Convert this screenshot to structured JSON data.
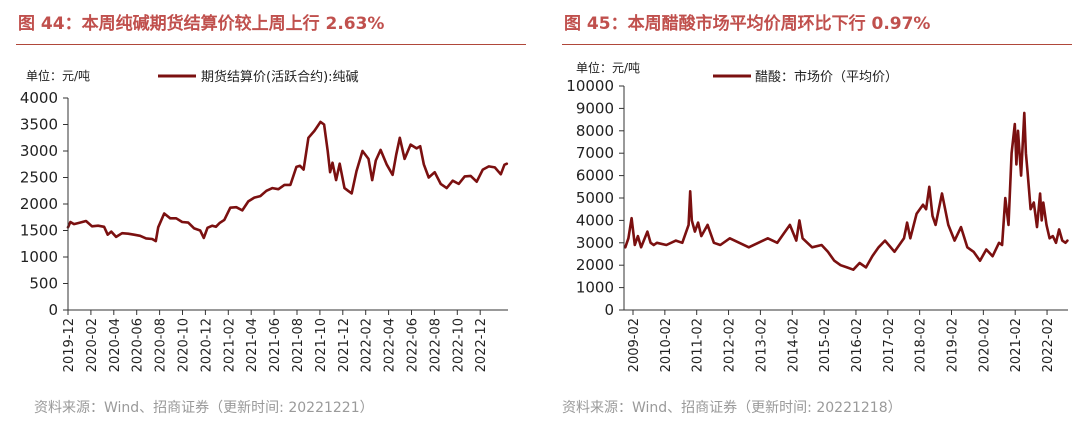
{
  "chart_data": [
    {
      "type": "line",
      "title": "图 44：本周纯碱期货结算价较上周上行 2.63%",
      "unit_label": "单位：元/吨",
      "legend": "期货结算价(活跃合约):纯碱",
      "source": "资料来源：Wind、招商证券（更新时间: 20221221）",
      "ylim": [
        0,
        4000
      ],
      "yticks": [
        "0",
        "500",
        "1000",
        "1500",
        "2000",
        "2500",
        "3000",
        "3500",
        "4000"
      ],
      "xlim": [
        0,
        36.6
      ],
      "xticks": [
        "2019-12",
        "2020-02",
        "2020-04",
        "2020-06",
        "2020-08",
        "2020-10",
        "2020-12",
        "2021-02",
        "2021-04",
        "2021-06",
        "2021-08",
        "2021-10",
        "2021-12",
        "2022-02",
        "2022-04",
        "2022-06",
        "2022-08",
        "2022-10",
        "2022-12"
      ],
      "x_unit": "months since 2019-12",
      "series": [
        {
          "name": "期货结算价(活跃合约):纯碱",
          "color": "#7b1010",
          "x": [
            0,
            0.2,
            0.5,
            1,
            1.5,
            2,
            2.5,
            3,
            3.3,
            3.6,
            4,
            4.5,
            5,
            5.5,
            6,
            6.5,
            7,
            7.3,
            7.5,
            8,
            8.5,
            9,
            9.5,
            10,
            10.5,
            11,
            11.3,
            11.6,
            12,
            12.3,
            12.6,
            13,
            13.5,
            14,
            14.5,
            15,
            15.5,
            16,
            16.5,
            17,
            17.5,
            18,
            18.5,
            19,
            19.3,
            19.6,
            20,
            20.5,
            21,
            21.3,
            21.6,
            21.8,
            22,
            22.3,
            22.6,
            23,
            23.3,
            23.6,
            24,
            24.5,
            25,
            25.3,
            25.6,
            26,
            26.5,
            27,
            27.3,
            27.6,
            28,
            28.5,
            29,
            29.3,
            29.6,
            30,
            30.5,
            31,
            31.5,
            32,
            32.5,
            33,
            33.5,
            34,
            34.5,
            35,
            35.5,
            36,
            36.3,
            36.5
          ],
          "values": [
            1560,
            1660,
            1620,
            1650,
            1680,
            1580,
            1590,
            1570,
            1420,
            1480,
            1380,
            1450,
            1440,
            1420,
            1400,
            1350,
            1340,
            1300,
            1560,
            1820,
            1730,
            1730,
            1660,
            1650,
            1540,
            1500,
            1360,
            1550,
            1590,
            1570,
            1640,
            1700,
            1930,
            1940,
            1880,
            2050,
            2120,
            2150,
            2250,
            2300,
            2280,
            2360,
            2360,
            2700,
            2720,
            2650,
            3250,
            3380,
            3550,
            3500,
            3000,
            2600,
            2780,
            2450,
            2760,
            2300,
            2250,
            2200,
            2620,
            3000,
            2850,
            2450,
            2820,
            3020,
            2750,
            2550,
            2930,
            3250,
            2850,
            3120,
            3050,
            3090,
            2750,
            2500,
            2600,
            2380,
            2300,
            2440,
            2380,
            2520,
            2530,
            2420,
            2650,
            2710,
            2690,
            2560,
            2740,
            2760
          ]
        }
      ]
    },
    {
      "type": "line",
      "title": "图 45：本周醋酸市场平均价周环比下行 0.97%",
      "unit_label": "单位：元/吨",
      "legend": "醋酸：市场价（平均价）",
      "source": "资料来源：Wind、招商证券（更新时间: 20221218）",
      "ylim": [
        0,
        10000
      ],
      "yticks": [
        "0",
        "1000",
        "2000",
        "3000",
        "4000",
        "5000",
        "6000",
        "7000",
        "8000",
        "9000",
        "10000"
      ],
      "xlim": [
        2008.96,
        2022.98
      ],
      "xticks": [
        "2009-02",
        "2010-02",
        "2011-02",
        "2012-02",
        "2013-02",
        "2014-02",
        "2015-02",
        "2016-02",
        "2017-02",
        "2018-02",
        "2019-02",
        "2020-02",
        "2021-02",
        "2022-02"
      ],
      "x_unit": "decimal year",
      "series": [
        {
          "name": "醋酸：市场价（平均价）",
          "color": "#7b1010",
          "x": [
            2009.0,
            2009.1,
            2009.2,
            2009.3,
            2009.4,
            2009.5,
            2009.7,
            2009.8,
            2009.9,
            2010.0,
            2010.3,
            2010.6,
            2010.8,
            2011.0,
            2011.05,
            2011.1,
            2011.2,
            2011.3,
            2011.4,
            2011.6,
            2011.8,
            2012.0,
            2012.3,
            2012.6,
            2012.9,
            2013.2,
            2013.5,
            2013.8,
            2014.0,
            2014.2,
            2014.4,
            2014.5,
            2014.6,
            2014.9,
            2015.2,
            2015.4,
            2015.6,
            2015.8,
            2016.0,
            2016.2,
            2016.4,
            2016.6,
            2016.8,
            2017.0,
            2017.2,
            2017.5,
            2017.8,
            2017.9,
            2018.0,
            2018.2,
            2018.4,
            2018.5,
            2018.6,
            2018.7,
            2018.8,
            2019.0,
            2019.2,
            2019.4,
            2019.6,
            2019.8,
            2020.0,
            2020.2,
            2020.4,
            2020.6,
            2020.8,
            2020.9,
            2021.0,
            2021.1,
            2021.2,
            2021.3,
            2021.35,
            2021.4,
            2021.5,
            2021.6,
            2021.65,
            2021.7,
            2021.8,
            2021.9,
            2022.0,
            2022.1,
            2022.15,
            2022.2,
            2022.3,
            2022.4,
            2022.5,
            2022.6,
            2022.7,
            2022.8,
            2022.9,
            2022.96
          ],
          "values": [
            2800,
            3200,
            4100,
            2900,
            3300,
            2800,
            3500,
            3000,
            2900,
            3000,
            2900,
            3100,
            3000,
            3800,
            5300,
            4000,
            3500,
            3900,
            3300,
            3800,
            3000,
            2900,
            3200,
            3000,
            2800,
            3000,
            3200,
            3000,
            3400,
            3800,
            3100,
            4000,
            3200,
            2800,
            2900,
            2600,
            2200,
            2000,
            1900,
            1800,
            2100,
            1900,
            2400,
            2800,
            3100,
            2600,
            3200,
            3900,
            3200,
            4300,
            4700,
            4500,
            5500,
            4200,
            3800,
            5200,
            3800,
            3100,
            3700,
            2800,
            2600,
            2200,
            2700,
            2400,
            3000,
            2900,
            5000,
            3800,
            7000,
            8300,
            6500,
            8000,
            6000,
            8800,
            7000,
            6200,
            4500,
            4800,
            3700,
            5200,
            4000,
            4800,
            3800,
            3200,
            3300,
            3000,
            3600,
            3100,
            3000,
            3100
          ]
        }
      ]
    }
  ]
}
